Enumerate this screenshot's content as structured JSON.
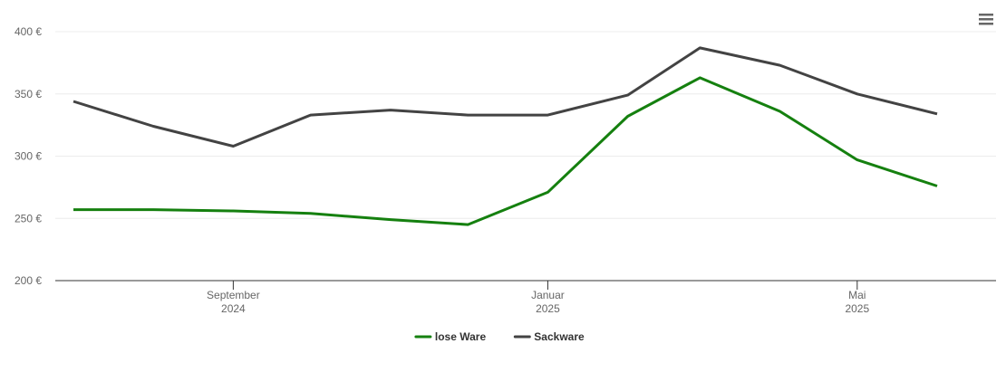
{
  "chart_data": {
    "type": "line",
    "x": [
      "2024-07",
      "2024-08",
      "2024-09",
      "2024-10",
      "2024-11",
      "2024-12",
      "2025-01",
      "2025-02",
      "2025-03",
      "2025-04",
      "2025-05",
      "2025-06"
    ],
    "xlim": [
      "2024-07",
      "2025-06"
    ],
    "xticks": [
      {
        "value": "2024-09",
        "label": [
          "September",
          "2024"
        ]
      },
      {
        "value": "2025-01",
        "label": [
          "Januar",
          "2025"
        ]
      },
      {
        "value": "2025-05",
        "label": [
          "Mai",
          "2025"
        ]
      }
    ],
    "ylim": [
      200,
      400
    ],
    "yticks": [
      {
        "value": 200,
        "label": "200 €"
      },
      {
        "value": 250,
        "label": "250 €"
      },
      {
        "value": 300,
        "label": "300 €"
      },
      {
        "value": 350,
        "label": "350 €"
      },
      {
        "value": 400,
        "label": "400 €"
      }
    ],
    "grid": true,
    "legend": "bottom",
    "series": [
      {
        "name": "lose Ware",
        "color": "#15800f",
        "values": [
          257,
          257,
          256,
          254,
          249,
          245,
          271,
          332,
          363,
          336,
          297,
          276
        ]
      },
      {
        "name": "Sackware",
        "color": "#434343",
        "values": [
          344,
          324,
          308,
          333,
          337,
          333,
          333,
          349,
          387,
          373,
          350,
          334
        ]
      }
    ]
  }
}
